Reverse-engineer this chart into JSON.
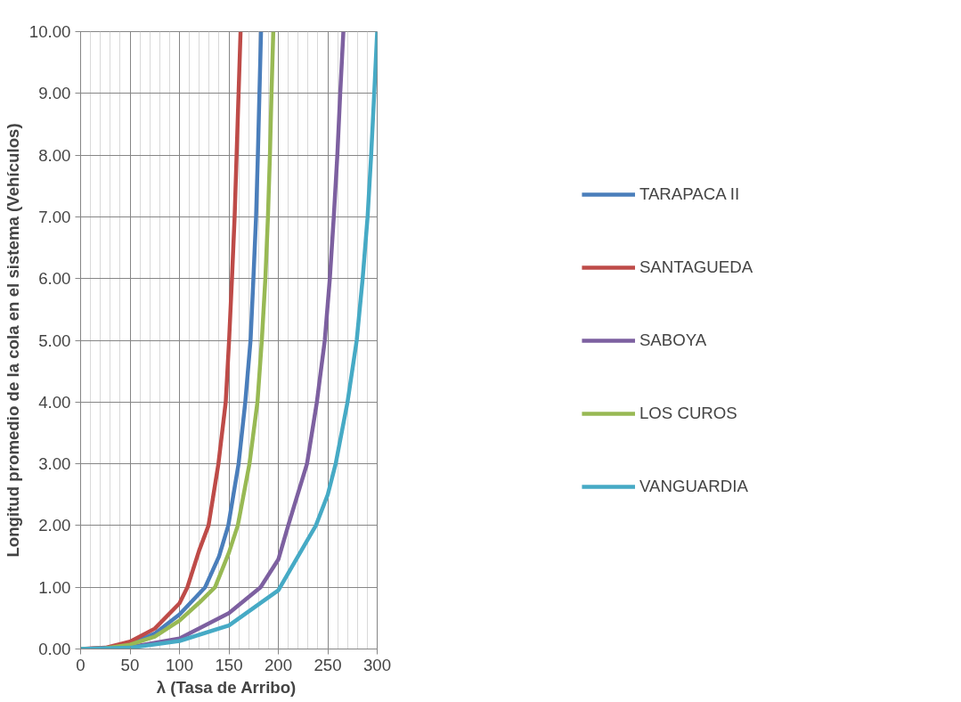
{
  "chart_data": {
    "type": "line",
    "xlabel": "λ  (Tasa de Arribo)",
    "ylabel": "Longitud promedio de la cola en el sistema (Vehículos)",
    "xlim": [
      0,
      300
    ],
    "ylim": [
      0,
      10
    ],
    "xticks": [
      0,
      50,
      100,
      150,
      200,
      250,
      300
    ],
    "yticks": [
      {
        "value": 0,
        "label": "0.00"
      },
      {
        "value": 1,
        "label": "1.00"
      },
      {
        "value": 2,
        "label": "2.00"
      },
      {
        "value": 3,
        "label": "3.00"
      },
      {
        "value": 4,
        "label": "4.00"
      },
      {
        "value": 5,
        "label": "5.00"
      },
      {
        "value": 6,
        "label": "6.00"
      },
      {
        "value": 7,
        "label": "7.00"
      },
      {
        "value": 8,
        "label": "8.00"
      },
      {
        "value": 9,
        "label": "9.00"
      },
      {
        "value": 10,
        "label": "10.00"
      }
    ],
    "grid": true,
    "legend": "right",
    "marker": "none",
    "line_style": "solid",
    "series": [
      {
        "name": "TARAPACA II",
        "color": "#4a7ebb",
        "x": [
          0,
          25,
          50,
          75,
          100,
          126,
          140,
          149.4,
          159.8,
          166.6,
          171.9,
          174.8,
          177.5,
          179.3,
          180.9,
          182.5
        ],
        "values": [
          0,
          0.01,
          0.08,
          0.25,
          0.56,
          1,
          1.5,
          2,
          3,
          4,
          5,
          6,
          7,
          8,
          9,
          10
        ]
      },
      {
        "name": "SANTAGUEDA",
        "color": "#be4b48",
        "x": [
          0,
          25,
          50,
          75,
          100,
          108,
          120,
          129.4,
          139.4,
          146.8,
          150.2,
          153.1,
          155.8,
          157.8,
          159.8,
          161.8
        ],
        "values": [
          0,
          0.02,
          0.12,
          0.33,
          0.74,
          1,
          1.6,
          2,
          3,
          4,
          5,
          6,
          7,
          8,
          9,
          10
        ]
      },
      {
        "name": "SABOYA",
        "color": "#7d60a0",
        "x": [
          0,
          50,
          100,
          150,
          182,
          200,
          210,
          229,
          239,
          247,
          252.1,
          256.1,
          259.7,
          262.6,
          265.8
        ],
        "values": [
          0,
          0.03,
          0.17,
          0.58,
          1,
          1.45,
          2,
          3,
          4,
          5,
          6,
          7,
          8,
          9,
          10
        ]
      },
      {
        "name": "LOS CUROS",
        "color": "#98b954",
        "x": [
          0,
          25,
          50,
          75,
          100,
          120,
          136,
          150,
          159,
          170.8,
          178.9,
          183.3,
          186.9,
          189.5,
          191.5,
          193.1,
          194.9
        ],
        "values": [
          0,
          0.01,
          0.07,
          0.2,
          0.46,
          0.75,
          1,
          1.56,
          2,
          3,
          4,
          5,
          6,
          7,
          8,
          9,
          10
        ]
      },
      {
        "name": "VANGUARDIA",
        "color": "#46aac5",
        "x": [
          0,
          50,
          100,
          150,
          200,
          238,
          250,
          258,
          270,
          279.3,
          285.3,
          290.3,
          293.9,
          297,
          300
        ],
        "values": [
          0,
          0.02,
          0.13,
          0.38,
          0.95,
          2,
          2.5,
          3,
          4,
          5,
          6,
          7,
          8,
          9,
          10
        ]
      }
    ]
  }
}
